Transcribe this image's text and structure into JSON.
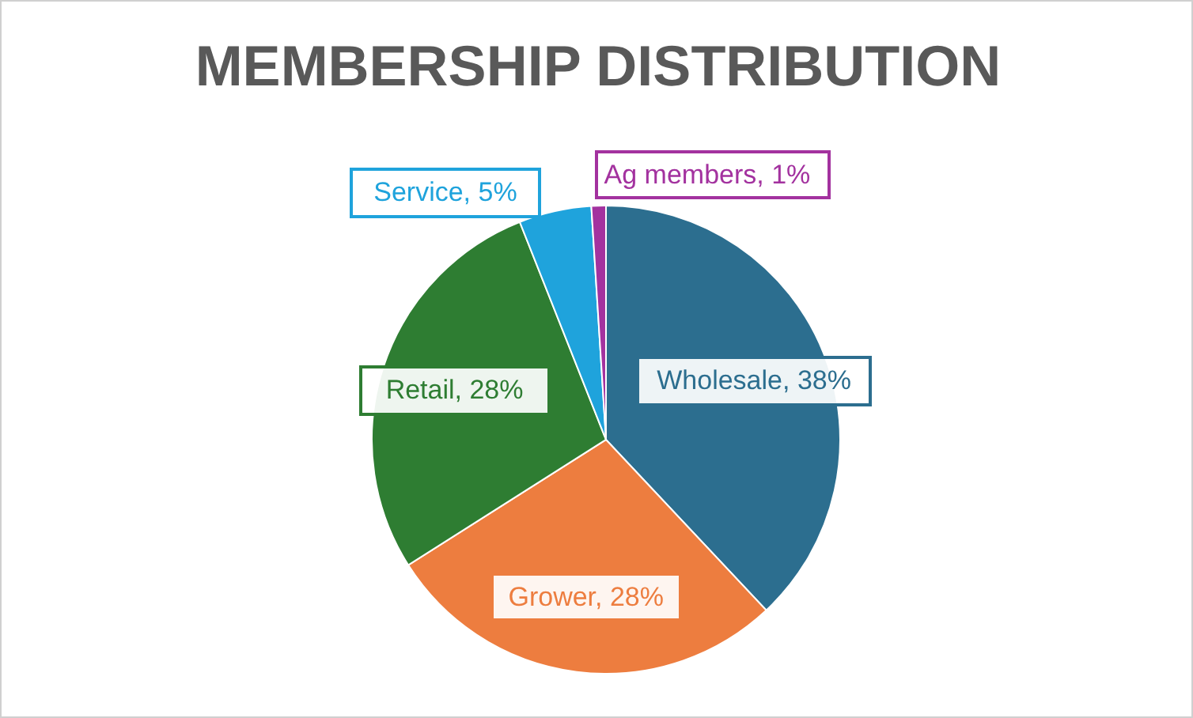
{
  "chart_data": {
    "type": "pie",
    "title": "MEMBERSHIP DISTRIBUTION",
    "categories": [
      "Wholesale",
      "Grower",
      "Retail",
      "Service",
      "Ag members"
    ],
    "values": [
      38,
      28,
      28,
      5,
      1
    ],
    "value_labels": [
      "38%",
      "28%",
      "28%",
      "5%",
      "1%"
    ],
    "colors": [
      "#2c6e8f",
      "#ed7d3f",
      "#2e7d32",
      "#1fa3dc",
      "#a3329f"
    ],
    "legend": false
  }
}
